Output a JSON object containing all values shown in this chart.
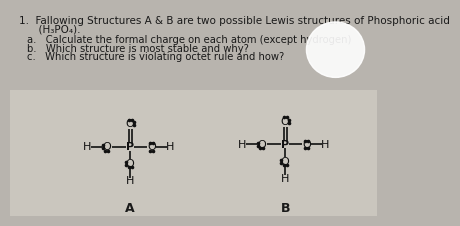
{
  "bg_color": "#b8b4ae",
  "struct_bg": "#d8d4cc",
  "title_line1": "1.  Fallowing Structures A & B are two possible Lewis structures of Phosphoric acid",
  "title_line2": "      (H₃PO₄).",
  "questions": [
    "a.   Calculate the formal charge on each atom (except hydrogen)",
    "b.   Which structure is most stable and why?",
    "c.   Which structure is violating octet rule and how?"
  ],
  "label_A": "A",
  "label_B": "B",
  "text_color": "#1a1a1a",
  "font_size_title": 7.5,
  "font_size_q": 7.2,
  "font_size_label": 9,
  "font_size_atom": 8.0,
  "lw": 1.2,
  "dot_ms": 1.6,
  "dot_d": 5,
  "pA": [
    155,
    178
  ],
  "pB": [
    355,
    175
  ],
  "struct_area_color": "#ccc8c0"
}
